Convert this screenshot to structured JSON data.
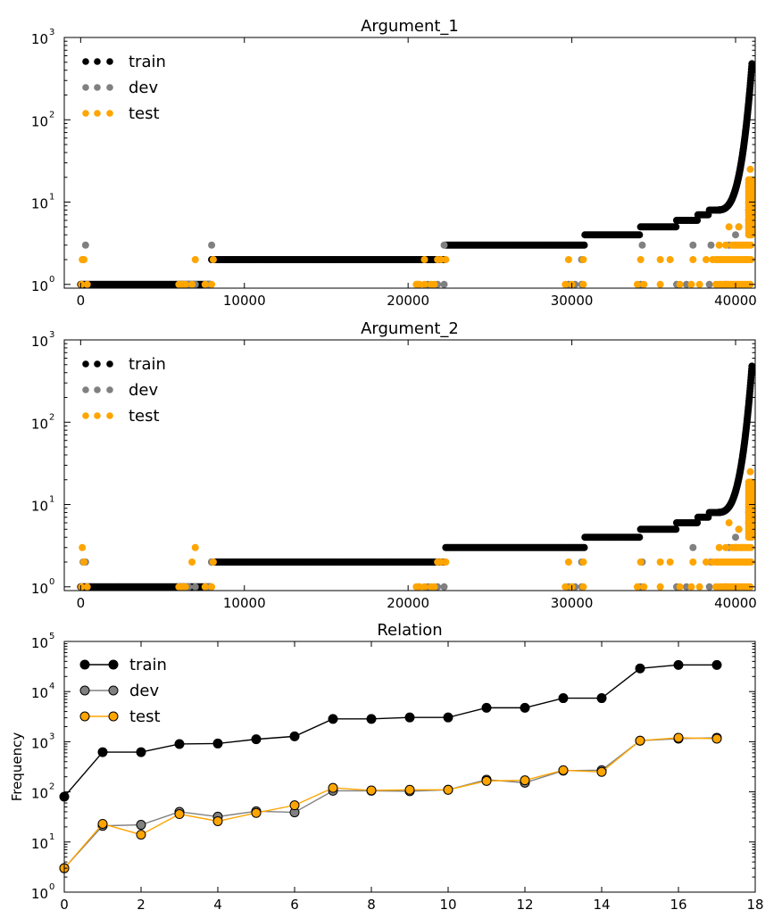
{
  "colors": {
    "train": "#000000",
    "dev": "#808080",
    "test": "#ffa500"
  },
  "chart_data": [
    {
      "type": "scatter",
      "title": "Argument_1",
      "yscale": "log",
      "ylim": [
        0.9,
        1000
      ],
      "xlim": [
        -1000,
        41200
      ],
      "xticks": [
        0,
        10000,
        20000,
        30000,
        40000
      ],
      "xtick_labels": [
        "0",
        "10000",
        "20000",
        "30000",
        "40000"
      ],
      "ytick_base": "10",
      "ytick_exponents": [
        "0",
        "1",
        "2",
        "3"
      ],
      "legend": {
        "position": "top-left",
        "entries": [
          "train",
          "dev",
          "test"
        ]
      },
      "series": [
        {
          "name": "train",
          "segments": [
            {
              "x": [
                0,
                8000
              ],
              "y": 1
            },
            {
              "x": [
                8000,
                22300
              ],
              "y": 2
            },
            {
              "x": [
                22300,
                30800
              ],
              "y": 3
            },
            {
              "x": [
                30800,
                34200
              ],
              "y": 4
            },
            {
              "x": [
                34200,
                36400
              ],
              "y": 5
            },
            {
              "x": [
                36400,
                37700
              ],
              "y": 6
            },
            {
              "x": [
                37700,
                38400
              ],
              "y": 7
            },
            {
              "x": [
                38400,
                38800
              ],
              "y": 8
            }
          ],
          "tail": {
            "x": [
              38800,
              41000
            ],
            "y": [
              8,
              480
            ]
          }
        },
        {
          "name": "dev",
          "points": [
            [
              150,
              2
            ],
            [
              300,
              3
            ],
            [
              6200,
              1
            ],
            [
              6600,
              1
            ],
            [
              7000,
              1
            ],
            [
              7800,
              1
            ],
            [
              8000,
              3
            ],
            [
              20600,
              1
            ],
            [
              21200,
              1
            ],
            [
              21800,
              1
            ],
            [
              22200,
              1
            ],
            [
              22200,
              3
            ],
            [
              29800,
              1
            ],
            [
              30200,
              1
            ],
            [
              30600,
              1
            ],
            [
              30600,
              2
            ],
            [
              34200,
              1
            ],
            [
              34300,
              3
            ],
            [
              36400,
              1
            ],
            [
              37000,
              1
            ],
            [
              37400,
              3
            ],
            [
              38400,
              1
            ],
            [
              38500,
              3
            ],
            [
              39400,
              1
            ],
            [
              39600,
              3
            ],
            [
              40000,
              4
            ],
            [
              40200,
              5
            ],
            [
              40800,
              8
            ],
            [
              40900,
              10
            ],
            [
              40950,
              14
            ]
          ]
        },
        {
          "name": "test",
          "points": [
            [
              50,
              1
            ],
            [
              100,
              2
            ],
            [
              200,
              2
            ],
            [
              400,
              1
            ],
            [
              6000,
              1
            ],
            [
              6200,
              1
            ],
            [
              6400,
              1
            ],
            [
              6800,
              1
            ],
            [
              7000,
              2
            ],
            [
              7600,
              1
            ],
            [
              8000,
              1
            ],
            [
              8100,
              2
            ],
            [
              20500,
              1
            ],
            [
              20700,
              1
            ],
            [
              21000,
              1
            ],
            [
              21400,
              1
            ],
            [
              21600,
              1
            ],
            [
              21000,
              2
            ],
            [
              21800,
              2
            ],
            [
              22000,
              2
            ],
            [
              22300,
              2
            ],
            [
              29600,
              1
            ],
            [
              29800,
              2
            ],
            [
              30000,
              1
            ],
            [
              30700,
              1
            ],
            [
              30700,
              2
            ],
            [
              34000,
              1
            ],
            [
              34200,
              2
            ],
            [
              34400,
              1
            ],
            [
              35400,
              1
            ],
            [
              35400,
              2
            ],
            [
              36000,
              2
            ],
            [
              36600,
              1
            ],
            [
              37300,
              1
            ],
            [
              37400,
              2
            ],
            [
              37800,
              1
            ],
            [
              38200,
              2
            ],
            [
              38600,
              2
            ],
            [
              38800,
              1
            ],
            [
              39000,
              3
            ],
            [
              39400,
              3
            ],
            [
              39600,
              5
            ],
            [
              40000,
              3
            ],
            [
              40200,
              5
            ],
            [
              40400,
              3
            ],
            [
              40600,
              2
            ],
            [
              40800,
              6
            ],
            [
              40900,
              25
            ],
            [
              41000,
              16
            ]
          ],
          "dense_bands": [
            {
              "x": [
                39000,
                41000
              ],
              "y": 1
            },
            {
              "x": [
                38800,
                41000
              ],
              "y": 2
            },
            {
              "x": [
                39800,
                41000
              ],
              "y": 3
            },
            {
              "x": [
                40800,
                41000
              ],
              "y": [
                4,
                20
              ]
            }
          ]
        }
      ]
    },
    {
      "type": "scatter",
      "title": "Argument_2",
      "yscale": "log",
      "ylim": [
        0.9,
        1000
      ],
      "xlim": [
        -1000,
        41200
      ],
      "xticks": [
        0,
        10000,
        20000,
        30000,
        40000
      ],
      "xtick_labels": [
        "0",
        "10000",
        "20000",
        "30000",
        "40000"
      ],
      "ytick_base": "10",
      "ytick_exponents": [
        "0",
        "1",
        "2",
        "3"
      ],
      "legend": {
        "position": "top-left",
        "entries": [
          "train",
          "dev",
          "test"
        ]
      },
      "series": [
        {
          "name": "train",
          "segments": [
            {
              "x": [
                0,
                8000
              ],
              "y": 1
            },
            {
              "x": [
                8000,
                22300
              ],
              "y": 2
            },
            {
              "x": [
                22300,
                30800
              ],
              "y": 3
            },
            {
              "x": [
                30800,
                34200
              ],
              "y": 4
            },
            {
              "x": [
                34200,
                36400
              ],
              "y": 5
            },
            {
              "x": [
                36400,
                37700
              ],
              "y": 6
            },
            {
              "x": [
                37700,
                38400
              ],
              "y": 7
            },
            {
              "x": [
                38400,
                38800
              ],
              "y": 8
            }
          ],
          "tail": {
            "x": [
              38800,
              41000
            ],
            "y": [
              8,
              480
            ]
          }
        },
        {
          "name": "dev",
          "points": [
            [
              150,
              2
            ],
            [
              300,
              2
            ],
            [
              6200,
              1
            ],
            [
              6600,
              1
            ],
            [
              7000,
              1
            ],
            [
              7800,
              1
            ],
            [
              8000,
              2
            ],
            [
              20600,
              1
            ],
            [
              21200,
              1
            ],
            [
              21800,
              1
            ],
            [
              22200,
              1
            ],
            [
              22200,
              2
            ],
            [
              29800,
              1
            ],
            [
              30200,
              1
            ],
            [
              30600,
              1
            ],
            [
              30600,
              2
            ],
            [
              34200,
              1
            ],
            [
              34300,
              2
            ],
            [
              36400,
              1
            ],
            [
              37000,
              1
            ],
            [
              37400,
              3
            ],
            [
              38400,
              1
            ],
            [
              38500,
              2
            ],
            [
              39400,
              1
            ],
            [
              39600,
              3
            ],
            [
              40000,
              4
            ],
            [
              40200,
              5
            ],
            [
              40800,
              8
            ],
            [
              40900,
              10
            ],
            [
              40950,
              14
            ]
          ]
        },
        {
          "name": "test",
          "points": [
            [
              50,
              1
            ],
            [
              100,
              3
            ],
            [
              200,
              2
            ],
            [
              400,
              1
            ],
            [
              6000,
              1
            ],
            [
              6200,
              1
            ],
            [
              6400,
              1
            ],
            [
              6800,
              2
            ],
            [
              7000,
              3
            ],
            [
              7600,
              1
            ],
            [
              8000,
              1
            ],
            [
              8100,
              2
            ],
            [
              20500,
              1
            ],
            [
              20700,
              1
            ],
            [
              21000,
              1
            ],
            [
              21400,
              1
            ],
            [
              21600,
              1
            ],
            [
              21800,
              2
            ],
            [
              22000,
              2
            ],
            [
              22300,
              2
            ],
            [
              29600,
              1
            ],
            [
              29800,
              2
            ],
            [
              30000,
              1
            ],
            [
              30700,
              1
            ],
            [
              30700,
              2
            ],
            [
              34000,
              1
            ],
            [
              34200,
              2
            ],
            [
              34400,
              1
            ],
            [
              35400,
              1
            ],
            [
              35400,
              2
            ],
            [
              36000,
              2
            ],
            [
              36600,
              1
            ],
            [
              37300,
              1
            ],
            [
              37400,
              2
            ],
            [
              37800,
              1
            ],
            [
              38200,
              2
            ],
            [
              38600,
              2
            ],
            [
              38800,
              1
            ],
            [
              39000,
              3
            ],
            [
              39400,
              3
            ],
            [
              39600,
              6
            ],
            [
              40000,
              3
            ],
            [
              40200,
              5
            ],
            [
              40400,
              3
            ],
            [
              40600,
              2
            ],
            [
              40800,
              6
            ],
            [
              40900,
              25
            ],
            [
              41000,
              16
            ]
          ],
          "dense_bands": [
            {
              "x": [
                39000,
                41000
              ],
              "y": 1
            },
            {
              "x": [
                38800,
                41000
              ],
              "y": 2
            },
            {
              "x": [
                39800,
                41000
              ],
              "y": 3
            },
            {
              "x": [
                40800,
                41000
              ],
              "y": [
                4,
                20
              ]
            }
          ]
        }
      ]
    },
    {
      "type": "line",
      "title": "Relation",
      "yscale": "log",
      "ylabel": "Frequency",
      "ylim": [
        1,
        100000
      ],
      "xlim": [
        0,
        18
      ],
      "xticks": [
        0,
        2,
        4,
        6,
        8,
        10,
        12,
        14,
        16,
        18
      ],
      "xtick_labels": [
        "0",
        "2",
        "4",
        "6",
        "8",
        "10",
        "12",
        "14",
        "16",
        "18"
      ],
      "ytick_base": "10",
      "ytick_exponents": [
        "0",
        "1",
        "2",
        "3",
        "4",
        "5"
      ],
      "legend": {
        "position": "top-left",
        "entries": [
          "train",
          "dev",
          "test"
        ]
      },
      "x": [
        0,
        1,
        2,
        3,
        4,
        5,
        6,
        7,
        8,
        9,
        10,
        11,
        12,
        13,
        14,
        15,
        16,
        17
      ],
      "series": [
        {
          "name": "train",
          "values": [
            80,
            620,
            620,
            900,
            920,
            1120,
            1280,
            2850,
            2850,
            3050,
            3050,
            4750,
            4750,
            7400,
            7400,
            29000,
            34000,
            34000
          ]
        },
        {
          "name": "dev",
          "values": [
            3,
            21,
            22,
            40,
            32,
            41,
            39,
            105,
            105,
            103,
            110,
            175,
            152,
            265,
            270,
            1050,
            1150,
            1200
          ]
        },
        {
          "name": "test",
          "values": [
            3,
            23,
            14,
            36,
            26,
            38,
            54,
            120,
            107,
            110,
            110,
            165,
            170,
            270,
            250,
            1050,
            1200,
            1150
          ]
        }
      ]
    }
  ]
}
